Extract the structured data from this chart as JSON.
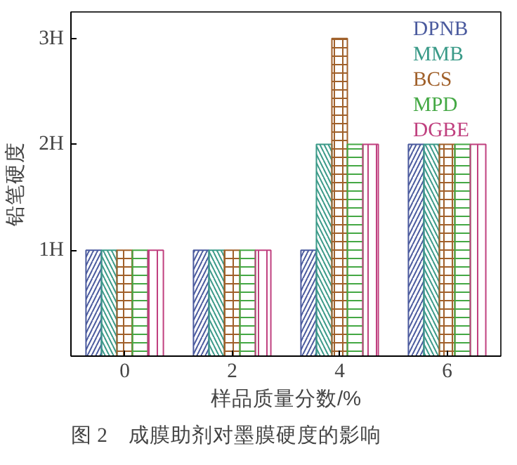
{
  "chart_data": {
    "type": "bar",
    "xlabel": "样品质量分数/%",
    "ylabel": "铅笔硬度",
    "categories": [
      "0",
      "2",
      "4",
      "6"
    ],
    "series": [
      {
        "name": "DPNB",
        "color": "#4a5a9e",
        "values": [
          1,
          1,
          1,
          2
        ]
      },
      {
        "name": "MMB",
        "color": "#3a9a88",
        "values": [
          1,
          1,
          2,
          2
        ]
      },
      {
        "name": "BCS",
        "color": "#a0602a",
        "values": [
          1,
          1,
          3,
          2
        ]
      },
      {
        "name": "MPD",
        "color": "#44a844",
        "values": [
          1,
          1,
          2,
          2
        ]
      },
      {
        "name": "DGBE",
        "color": "#c0407f",
        "values": [
          1,
          1,
          2,
          2
        ]
      }
    ],
    "ylim": [
      0,
      3.25
    ],
    "yticks": [
      {
        "value": 1,
        "label": "1H"
      },
      {
        "value": 2,
        "label": "2H"
      },
      {
        "value": 3,
        "label": "3H"
      }
    ],
    "grid": false,
    "legend": "top right",
    "annotations": [
      "图 2　成膜助剂对墨膜硬度的影响"
    ]
  }
}
